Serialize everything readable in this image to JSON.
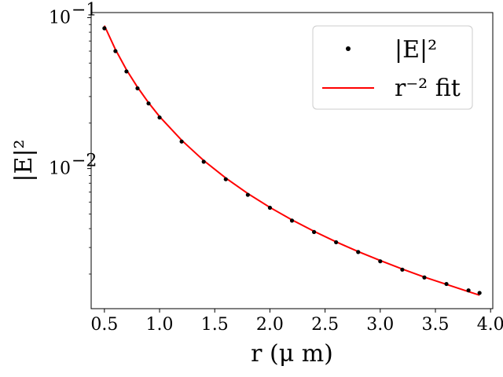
{
  "chart_data": {
    "type": "scatter",
    "xlabel": "r (μ m)",
    "ylabel": "|E|²",
    "xlim": [
      0.38,
      4.02
    ],
    "ylim": [
      0.00118,
      0.108
    ],
    "yscale": "log",
    "grid": false,
    "legend_position": "top-right",
    "x_ticks": [
      0.5,
      1.0,
      1.5,
      2.0,
      2.5,
      3.0,
      3.5,
      4.0
    ],
    "x_tick_labels": [
      "0.5",
      "1.0",
      "1.5",
      "2.0",
      "2.5",
      "3.0",
      "3.5",
      "4.0"
    ],
    "y_major_ticks": [
      0.01,
      0.1
    ],
    "y_tick_labels": [
      {
        "base": "10",
        "exp": "−2"
      },
      {
        "base": "10",
        "exp": "−1"
      }
    ],
    "series": [
      {
        "name": "|E|²",
        "kind": "scatter",
        "color": "#000000",
        "x": [
          0.5,
          0.6,
          0.7,
          0.8,
          0.9,
          1.0,
          1.2,
          1.4,
          1.6,
          1.8,
          2.0,
          2.2,
          2.4,
          2.6,
          2.8,
          3.0,
          3.2,
          3.4,
          3.6,
          3.8,
          3.9
        ],
        "y": [
          0.085,
          0.06,
          0.044,
          0.034,
          0.027,
          0.0218,
          0.0151,
          0.0111,
          0.0085,
          0.0067,
          0.0055,
          0.00452,
          0.0038,
          0.00325,
          0.0028,
          0.00243,
          0.00214,
          0.0019,
          0.00172,
          0.00156,
          0.0015
        ]
      },
      {
        "name": "r⁻² fit",
        "kind": "line",
        "color": "#ff0000",
        "x": [
          0.5,
          0.6,
          0.7,
          0.8,
          0.9,
          1.0,
          1.2,
          1.4,
          1.6,
          1.8,
          2.0,
          2.2,
          2.4,
          2.6,
          2.8,
          3.0,
          3.2,
          3.4,
          3.6,
          3.8,
          3.9
        ],
        "y": [
          0.0885,
          0.0615,
          0.0451,
          0.0346,
          0.0273,
          0.0221,
          0.0154,
          0.0113,
          0.00865,
          0.00683,
          0.00553,
          0.00457,
          0.00384,
          0.00327,
          0.00282,
          0.00246,
          0.00216,
          0.00191,
          0.00171,
          0.00153,
          0.00145
        ]
      }
    ]
  }
}
